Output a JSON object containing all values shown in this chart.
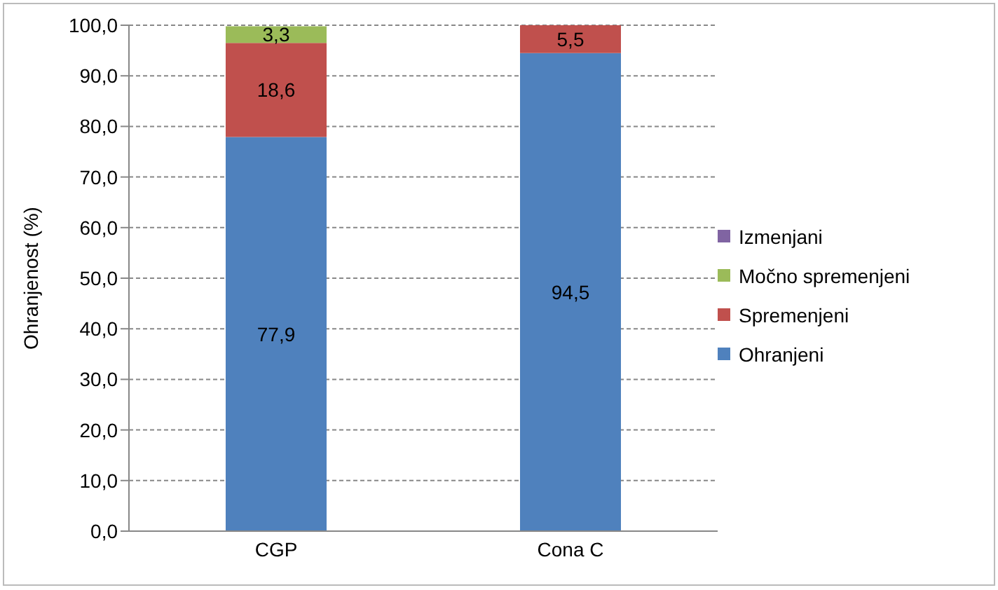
{
  "chart_data": {
    "type": "bar",
    "stacked": true,
    "ylabel": "Ohranjenost (%)",
    "categories": [
      "CGP",
      "Cona C"
    ],
    "series": [
      {
        "name": "Ohranjeni",
        "color": "#4f81bd",
        "values": [
          77.9,
          94.5
        ],
        "value_labels": [
          "77,9",
          "94,5"
        ]
      },
      {
        "name": "Spremenjeni",
        "color": "#c0504d",
        "values": [
          18.6,
          5.5
        ],
        "value_labels": [
          "18,6",
          "5,5"
        ]
      },
      {
        "name": "Močno spremenjeni",
        "color": "#9bbb59",
        "values": [
          3.3,
          0
        ],
        "value_labels": [
          "3,3",
          null
        ]
      },
      {
        "name": "Izmenjani",
        "color": "#8064a2",
        "values": [
          0,
          0
        ],
        "value_labels": [
          null,
          null
        ]
      }
    ],
    "ylim": [
      0,
      100
    ],
    "yticks": [
      {
        "value": 0,
        "label": "0,0"
      },
      {
        "value": 10,
        "label": "10,0"
      },
      {
        "value": 20,
        "label": "20,0"
      },
      {
        "value": 30,
        "label": "30,0"
      },
      {
        "value": 40,
        "label": "40,0"
      },
      {
        "value": 50,
        "label": "50,0"
      },
      {
        "value": 60,
        "label": "60,0"
      },
      {
        "value": 70,
        "label": "70,0"
      },
      {
        "value": 80,
        "label": "80,0"
      },
      {
        "value": 90,
        "label": "90,0"
      },
      {
        "value": 100,
        "label": "100,0"
      }
    ],
    "grid": "y",
    "legend": "right"
  }
}
